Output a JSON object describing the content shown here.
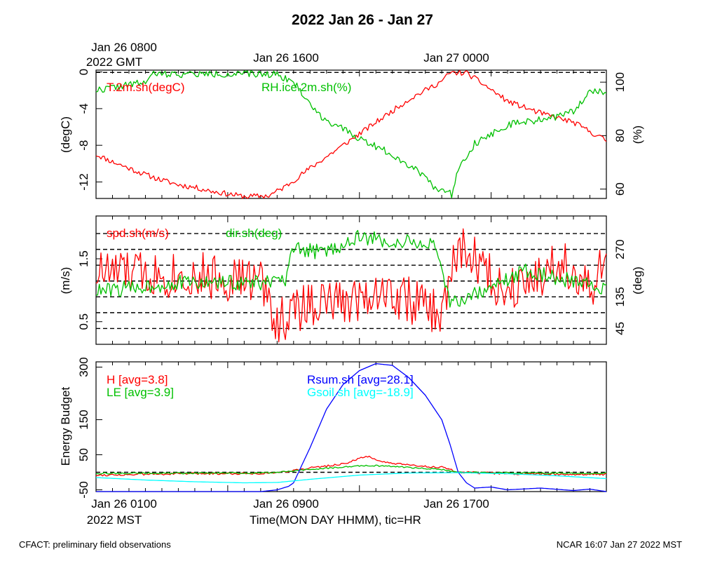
{
  "title": "2022 Jan 26 - Jan 27",
  "top_axis": {
    "start_label_1": "Jan 26 0800",
    "start_label_2": "2022 GMT",
    "mid_label": "Jan 26 1600",
    "end_label": "Jan 27 0000"
  },
  "bottom_axis": {
    "start_label_1": "Jan 26 0100",
    "start_label_2": "2022 MST",
    "mid_label": "Jan 26 0900",
    "end_label": "Jan 26 1700",
    "xlabel": "Time(MON DAY HHMM), tic=HR"
  },
  "footer": {
    "left": "CFACT: preliminary field observations",
    "right": "NCAR 16:07 Jan 27 2022 MST"
  },
  "colors": {
    "red": "#ff0000",
    "green": "#00c000",
    "blue": "#0000ff",
    "cyan": "#00ffff"
  },
  "chart_data": [
    {
      "type": "line",
      "name": "temperature-humidity",
      "x_range_hours": [
        0,
        31
      ],
      "left_axis": {
        "label": "(degC)",
        "ylim": [
          -13.8,
          0.2
        ],
        "ticks": [
          0,
          -4,
          -8,
          -12
        ],
        "tick_labels": [
          "0",
          "-4",
          "-8",
          "-12"
        ]
      },
      "right_axis": {
        "label": "(%)",
        "ylim": [
          56.5,
          104.5
        ],
        "ticks": [
          60,
          80,
          100
        ],
        "tick_labels": [
          "60",
          "80",
          "100"
        ]
      },
      "ref_lines_left": [
        -0.05
      ],
      "series": [
        {
          "name": "T.2m.sh(degC)",
          "axis": "left",
          "color": "#ff0000",
          "x": [
            0,
            1,
            2,
            3,
            4,
            5,
            6,
            7,
            8,
            9,
            10.5,
            11.5,
            13,
            15,
            17,
            19,
            21,
            21.5,
            22.5,
            23.5,
            25,
            27,
            29,
            30,
            31
          ],
          "y": [
            -9.0,
            -9.8,
            -10.5,
            -11.2,
            -11.8,
            -12.3,
            -12.6,
            -13.0,
            -13.3,
            -13.6,
            -13.5,
            -12.5,
            -10.5,
            -8.0,
            -5.5,
            -3.0,
            -1.0,
            -0.1,
            -0.1,
            -1.3,
            -3.2,
            -4.5,
            -5.5,
            -6.5,
            -7.5
          ],
          "noise": 0.3,
          "seed": 11
        },
        {
          "name": "RH.ice.2m.sh(%)",
          "axis": "right",
          "color": "#00c000",
          "x": [
            0,
            1,
            2,
            3,
            3.5,
            5,
            7,
            9,
            11,
            12,
            13.5,
            14.5,
            16,
            18,
            20,
            20.5,
            21.3,
            21.6,
            22,
            23,
            25,
            27,
            28,
            29,
            30,
            31
          ],
          "y": [
            97,
            98,
            99,
            100,
            103,
            103,
            103,
            103,
            103,
            100,
            88,
            84,
            79,
            73,
            65,
            61,
            59,
            58,
            68,
            77,
            84,
            86,
            87,
            89,
            97,
            96
          ],
          "noise": 1.3,
          "seed": 22
        }
      ],
      "legend": [
        "T.2m.sh(degC)",
        "RH.ice.2m.sh(%)"
      ]
    },
    {
      "type": "line",
      "name": "wind",
      "x_range_hours": [
        0,
        31
      ],
      "left_axis": {
        "label": "(m/s)",
        "ylim": [
          0.14,
          2.18
        ],
        "ticks": [
          1.5,
          0.5
        ],
        "tick_labels": [
          "1.5",
          "0.5"
        ]
      },
      "right_axis": {
        "label": "(deg)",
        "ylim": [
          0,
          365
        ],
        "ticks": [
          270,
          135,
          45
        ],
        "tick_labels": [
          "270",
          "135",
          "45"
        ]
      },
      "ref_lines_right": [
        45,
        90,
        135,
        180,
        225,
        270,
        315
      ],
      "series": [
        {
          "name": "spd.sh(m/s)",
          "axis": "left",
          "color": "#ff0000",
          "x": [
            0,
            5,
            10,
            11,
            13,
            15,
            17,
            19,
            21,
            22,
            23,
            24,
            25,
            26,
            27,
            28,
            29,
            30,
            31
          ],
          "y": [
            1.3,
            1.25,
            1.15,
            0.5,
            0.8,
            0.8,
            1.0,
            0.85,
            0.6,
            1.7,
            1.5,
            1.2,
            0.95,
            1.3,
            1.2,
            1.5,
            1.3,
            0.9,
            1.5
          ],
          "noise": 0.38,
          "seed": 33
        },
        {
          "name": "dir.sh(deg)",
          "axis": "right",
          "color": "#00c000",
          "x": [
            0,
            5,
            10,
            11.5,
            12,
            13,
            14,
            16,
            18,
            19.5,
            20.5,
            21.5,
            22,
            24,
            26,
            28,
            31
          ],
          "y": [
            150,
            175,
            175,
            180,
            270,
            265,
            265,
            305,
            290,
            290,
            280,
            120,
            125,
            160,
            210,
            190,
            160
          ],
          "noise": 22,
          "seed": 44
        }
      ],
      "legend": [
        "spd.sh(m/s)",
        "dir.sh(deg)"
      ]
    },
    {
      "type": "line",
      "name": "energy-budget",
      "x_range_hours": [
        0,
        31
      ],
      "left_axis": {
        "label": "Energy Budget",
        "ylim": [
          -55,
          315
        ],
        "ticks": [
          300,
          150,
          50,
          -50
        ],
        "tick_labels": [
          "300",
          "150",
          "50",
          "-50"
        ]
      },
      "ref_lines_left": [
        0
      ],
      "series": [
        {
          "name": "H [avg=3.8]",
          "color": "#ff0000",
          "x": [
            0,
            5,
            10,
            11,
            13,
            15,
            16.5,
            17.5,
            19,
            21,
            22,
            26,
            31
          ],
          "y": [
            -8,
            -4,
            -3,
            -1,
            12,
            24,
            46,
            28,
            20,
            14,
            0,
            -5,
            -6
          ],
          "noise": 3,
          "seed": 55
        },
        {
          "name": "LE [avg=3.9]",
          "color": "#00c000",
          "x": [
            0,
            10,
            11,
            13,
            15,
            16.5,
            17.5,
            19,
            21,
            22,
            26,
            31
          ],
          "y": [
            -3,
            -2,
            0,
            8,
            15,
            20,
            18,
            14,
            8,
            0,
            -2,
            -3
          ],
          "noise": 2,
          "seed": 66
        },
        {
          "name": "Rsum.sh [avg=28.1]",
          "color": "#0000ff",
          "x": [
            0,
            5,
            10,
            11,
            11.7,
            12,
            13,
            14,
            15,
            16,
            17,
            18,
            19,
            20,
            21,
            21.5,
            22,
            22.5,
            23,
            24,
            25,
            27,
            29,
            30,
            31
          ],
          "y": [
            -56,
            -57,
            -55,
            -50,
            -40,
            -30,
            70,
            180,
            250,
            290,
            310,
            305,
            270,
            220,
            150,
            80,
            0,
            -30,
            -45,
            -42,
            -50,
            -45,
            -52,
            -48,
            -55
          ],
          "noise": 0,
          "seed": 0
        },
        {
          "name": "Gsoil.sh [avg=-18.9]",
          "color": "#00ffff",
          "x": [
            0,
            3,
            6,
            9,
            11,
            13,
            16,
            19,
            22,
            25,
            28,
            31
          ],
          "y": [
            -15,
            -22,
            -27,
            -30,
            -29,
            -20,
            -8,
            -2,
            -1,
            -4,
            -10,
            -18
          ],
          "noise": 0,
          "seed": 0
        }
      ],
      "legend": [
        "H [avg=3.8]",
        "LE [avg=3.9]",
        "Rsum.sh [avg=28.1]",
        "Gsoil.sh [avg=-18.9]"
      ]
    }
  ]
}
